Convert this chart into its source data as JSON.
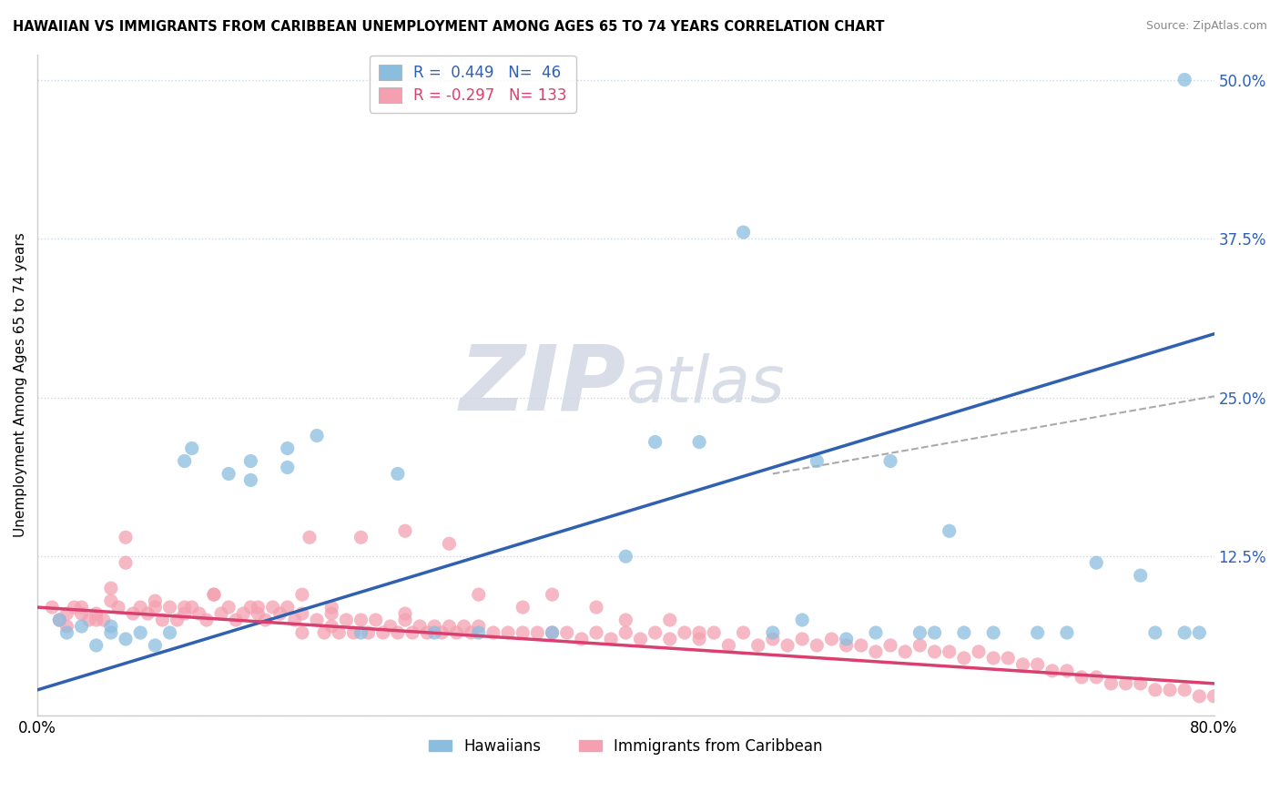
{
  "title": "HAWAIIAN VS IMMIGRANTS FROM CARIBBEAN UNEMPLOYMENT AMONG AGES 65 TO 74 YEARS CORRELATION CHART",
  "source": "Source: ZipAtlas.com",
  "ylabel": "Unemployment Among Ages 65 to 74 years",
  "xlim": [
    0.0,
    0.8
  ],
  "ylim": [
    0.0,
    0.52
  ],
  "yticks_right": [
    0.0,
    0.125,
    0.25,
    0.375,
    0.5
  ],
  "ytick_labels_right": [
    "",
    "12.5%",
    "25.0%",
    "37.5%",
    "50.0%"
  ],
  "group1_name": "Hawaiians",
  "group1_color": "#8bbddf",
  "group2_name": "Immigrants from Caribbean",
  "group2_color": "#f4a0b0",
  "background_color": "#ffffff",
  "grid_color": "#c8d8e8",
  "trend_color_1": "#3060b0",
  "trend_color_2": "#d94070",
  "dashed_line_color": "#aaaaaa",
  "watermark_color": "#d8dde8",
  "legend_text_color_1": "#3060b0",
  "legend_text_color_2": "#d94070",
  "hawaiians_x": [
    0.015,
    0.02,
    0.03,
    0.04,
    0.05,
    0.05,
    0.06,
    0.07,
    0.08,
    0.09,
    0.1,
    0.105,
    0.13,
    0.145,
    0.145,
    0.17,
    0.17,
    0.19,
    0.22,
    0.245,
    0.27,
    0.3,
    0.35,
    0.4,
    0.45,
    0.5,
    0.52,
    0.55,
    0.57,
    0.6,
    0.61,
    0.63,
    0.65,
    0.68,
    0.7,
    0.72,
    0.75,
    0.76,
    0.78,
    0.79,
    0.42,
    0.48,
    0.53,
    0.58,
    0.62,
    0.78
  ],
  "hawaiians_y": [
    0.075,
    0.065,
    0.07,
    0.055,
    0.065,
    0.07,
    0.06,
    0.065,
    0.055,
    0.065,
    0.2,
    0.21,
    0.19,
    0.2,
    0.185,
    0.21,
    0.195,
    0.22,
    0.065,
    0.19,
    0.065,
    0.065,
    0.065,
    0.125,
    0.215,
    0.065,
    0.075,
    0.06,
    0.065,
    0.065,
    0.065,
    0.065,
    0.065,
    0.065,
    0.065,
    0.12,
    0.11,
    0.065,
    0.065,
    0.065,
    0.215,
    0.38,
    0.2,
    0.2,
    0.145,
    0.5
  ],
  "caribbean_x": [
    0.01,
    0.015,
    0.02,
    0.025,
    0.03,
    0.035,
    0.04,
    0.045,
    0.05,
    0.055,
    0.06,
    0.065,
    0.07,
    0.075,
    0.08,
    0.085,
    0.09,
    0.095,
    0.1,
    0.105,
    0.11,
    0.115,
    0.12,
    0.125,
    0.13,
    0.135,
    0.14,
    0.145,
    0.15,
    0.155,
    0.16,
    0.165,
    0.17,
    0.175,
    0.18,
    0.185,
    0.19,
    0.195,
    0.2,
    0.205,
    0.21,
    0.215,
    0.22,
    0.225,
    0.23,
    0.235,
    0.24,
    0.245,
    0.25,
    0.255,
    0.26,
    0.265,
    0.27,
    0.275,
    0.28,
    0.285,
    0.29,
    0.295,
    0.3,
    0.31,
    0.32,
    0.33,
    0.34,
    0.35,
    0.36,
    0.37,
    0.38,
    0.39,
    0.4,
    0.41,
    0.42,
    0.43,
    0.44,
    0.45,
    0.46,
    0.47,
    0.48,
    0.49,
    0.5,
    0.51,
    0.52,
    0.53,
    0.54,
    0.55,
    0.56,
    0.57,
    0.58,
    0.59,
    0.6,
    0.61,
    0.62,
    0.63,
    0.64,
    0.65,
    0.66,
    0.67,
    0.68,
    0.69,
    0.7,
    0.71,
    0.72,
    0.73,
    0.74,
    0.75,
    0.76,
    0.77,
    0.78,
    0.79,
    0.8,
    0.02,
    0.03,
    0.04,
    0.05,
    0.06,
    0.08,
    0.1,
    0.12,
    0.15,
    0.18,
    0.2,
    0.22,
    0.25,
    0.28,
    0.3,
    0.33,
    0.35,
    0.38,
    0.4,
    0.43,
    0.45,
    0.18,
    0.2,
    0.25
  ],
  "caribbean_y": [
    0.085,
    0.075,
    0.08,
    0.085,
    0.08,
    0.075,
    0.08,
    0.075,
    0.1,
    0.085,
    0.14,
    0.08,
    0.085,
    0.08,
    0.085,
    0.075,
    0.085,
    0.075,
    0.08,
    0.085,
    0.08,
    0.075,
    0.095,
    0.08,
    0.085,
    0.075,
    0.08,
    0.085,
    0.08,
    0.075,
    0.085,
    0.08,
    0.085,
    0.075,
    0.065,
    0.14,
    0.075,
    0.065,
    0.08,
    0.065,
    0.075,
    0.065,
    0.075,
    0.065,
    0.075,
    0.065,
    0.07,
    0.065,
    0.075,
    0.065,
    0.07,
    0.065,
    0.07,
    0.065,
    0.07,
    0.065,
    0.07,
    0.065,
    0.07,
    0.065,
    0.065,
    0.065,
    0.065,
    0.065,
    0.065,
    0.06,
    0.065,
    0.06,
    0.065,
    0.06,
    0.065,
    0.06,
    0.065,
    0.06,
    0.065,
    0.055,
    0.065,
    0.055,
    0.06,
    0.055,
    0.06,
    0.055,
    0.06,
    0.055,
    0.055,
    0.05,
    0.055,
    0.05,
    0.055,
    0.05,
    0.05,
    0.045,
    0.05,
    0.045,
    0.045,
    0.04,
    0.04,
    0.035,
    0.035,
    0.03,
    0.03,
    0.025,
    0.025,
    0.025,
    0.02,
    0.02,
    0.02,
    0.015,
    0.015,
    0.07,
    0.085,
    0.075,
    0.09,
    0.12,
    0.09,
    0.085,
    0.095,
    0.085,
    0.095,
    0.085,
    0.14,
    0.145,
    0.135,
    0.095,
    0.085,
    0.095,
    0.085,
    0.075,
    0.075,
    0.065,
    0.08,
    0.07,
    0.08
  ]
}
